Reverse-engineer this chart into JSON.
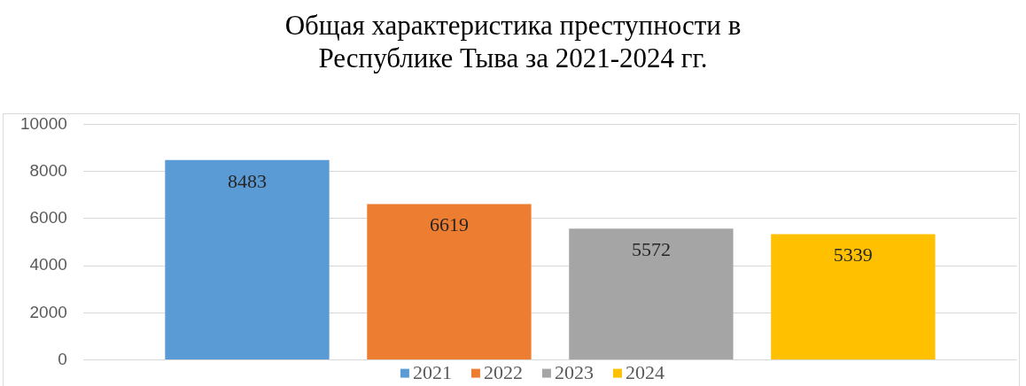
{
  "chart_data": {
    "type": "bar",
    "title": "Общая характеристика преступности в Республике Тыва за 2021-2024 гг.",
    "categories": [
      null
    ],
    "series": [
      {
        "name": "2021",
        "color": "#5b9bd5",
        "values": [
          8483
        ]
      },
      {
        "name": "2022",
        "color": "#ed7d31",
        "values": [
          6619
        ]
      },
      {
        "name": "2023",
        "color": "#a5a5a5",
        "values": [
          5572
        ]
      },
      {
        "name": "2024",
        "color": "#ffc000",
        "values": [
          5339
        ]
      }
    ],
    "ylim": [
      0,
      10000
    ],
    "yticks": [
      0,
      2000,
      4000,
      6000,
      8000,
      10000
    ],
    "grid": "y",
    "legend": "bottom",
    "data_labels": true
  }
}
